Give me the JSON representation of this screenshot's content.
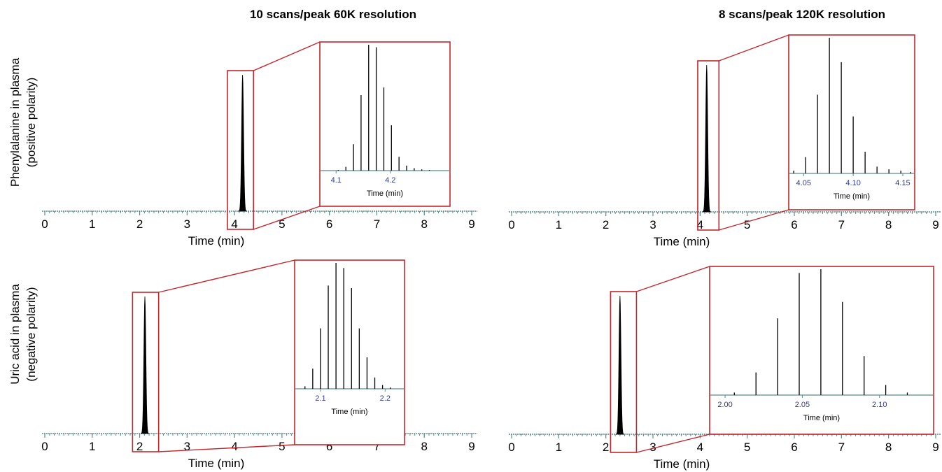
{
  "columns": [
    "10 scans/peak 60K resolution",
    "8 scans/peak 120K resolution"
  ],
  "rows": [
    "Phenylalanine in plasma\n(positive polarity)",
    "Uric acid in plasma\n(negative polarity)"
  ],
  "colors": {
    "trace": "#000000",
    "zoom_box": "#c1272d",
    "axis": "#5c8a8a",
    "inset_tick_label": "#333a8a"
  },
  "chart_data": [
    {
      "type": "line",
      "panel": "row1-col1",
      "xlabel": "Time (min)",
      "xlim": [
        0,
        9
      ],
      "xticks": [
        0,
        1,
        2,
        3,
        4,
        5,
        6,
        7,
        8,
        9
      ],
      "peak": {
        "center": 4.17,
        "height": 1.0
      },
      "zoom_window": [
        3.85,
        4.4
      ],
      "inset": {
        "type": "bar",
        "xlabel": "Time (min)",
        "xlim": [
          4.07,
          4.31
        ],
        "xticks": [
          4.1,
          4.2
        ],
        "x": [
          4.104,
          4.118,
          4.132,
          4.146,
          4.16,
          4.174,
          4.188,
          4.202,
          4.216,
          4.23,
          4.244,
          4.258,
          4.272
        ],
        "values": [
          0.005,
          0.03,
          0.21,
          0.6,
          1.0,
          0.98,
          0.66,
          0.36,
          0.11,
          0.04,
          0.02,
          0.01,
          0.005
        ]
      }
    },
    {
      "type": "line",
      "panel": "row1-col2",
      "xlabel": "Time (min)",
      "xlim": [
        0,
        9
      ],
      "xticks": [
        0,
        1,
        2,
        3,
        4,
        5,
        6,
        7,
        8,
        9
      ],
      "peak": {
        "center": 4.14,
        "height": 1.0
      },
      "zoom_window": [
        3.95,
        4.4
      ],
      "inset": {
        "type": "bar",
        "xlabel": "Time (min)",
        "xlim": [
          4.035,
          4.162
        ],
        "xticks": [
          4.05,
          4.1,
          4.15
        ],
        "x": [
          4.04,
          4.052,
          4.064,
          4.076,
          4.088,
          4.1,
          4.112,
          4.124,
          4.136,
          4.148,
          4.158
        ],
        "values": [
          0.02,
          0.12,
          0.58,
          1.0,
          0.82,
          0.42,
          0.16,
          0.05,
          0.03,
          0.02,
          0.01
        ]
      }
    },
    {
      "type": "line",
      "panel": "row2-col1",
      "xlabel": "Time (min)",
      "xlim": [
        0,
        9
      ],
      "xticks": [
        0,
        1,
        2,
        3,
        4,
        5,
        6,
        7,
        8,
        9
      ],
      "peak": {
        "center": 2.11,
        "height": 1.0
      },
      "zoom_window": [
        1.85,
        2.4
      ],
      "inset": {
        "type": "bar",
        "xlabel": "Time (min)",
        "xlim": [
          2.06,
          2.23
        ],
        "xticks": [
          2.1,
          2.2
        ],
        "x": [
          2.076,
          2.088,
          2.1,
          2.112,
          2.124,
          2.136,
          2.148,
          2.16,
          2.172,
          2.184,
          2.196,
          2.208
        ],
        "values": [
          0.02,
          0.16,
          0.48,
          0.82,
          1.0,
          0.96,
          0.8,
          0.48,
          0.25,
          0.09,
          0.03,
          0.01
        ]
      }
    },
    {
      "type": "line",
      "panel": "row2-col2",
      "xlabel": "Time (min)",
      "xlim": [
        0,
        9
      ],
      "xticks": [
        0,
        1,
        2,
        3,
        4,
        5,
        6,
        7,
        8,
        9
      ],
      "peak": {
        "center": 2.3,
        "height": 1.0
      },
      "zoom_window": [
        2.1,
        2.65
      ],
      "inset": {
        "type": "bar",
        "xlabel": "Time (min)",
        "xlim": [
          1.99,
          2.135
        ],
        "xticks": [
          2.0,
          2.05,
          2.1
        ],
        "x": [
          2.006,
          2.02,
          2.034,
          2.048,
          2.062,
          2.076,
          2.09,
          2.104,
          2.118
        ],
        "values": [
          0.02,
          0.18,
          0.61,
          0.97,
          1.0,
          0.74,
          0.31,
          0.08,
          0.02
        ]
      }
    }
  ]
}
